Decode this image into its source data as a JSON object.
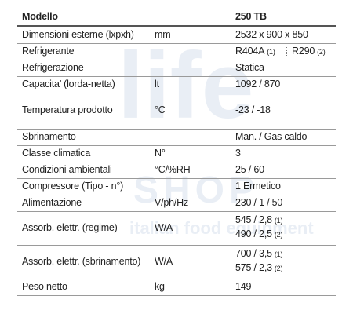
{
  "watermark": [
    "life",
    "SHOP",
    "italian food equipment"
  ],
  "header": {
    "label": "Modello",
    "value": "250 TB"
  },
  "rows": [
    {
      "label": "Dimensioni esterne (lxpxh)",
      "unit": "mm",
      "values": [
        {
          "text": "2532 x 900 x 850"
        }
      ]
    },
    {
      "label": "Refrigerante",
      "values": [
        {
          "text": "R404A",
          "note": "(1)"
        },
        {
          "text": "R290",
          "note": "(2)"
        }
      ]
    },
    {
      "label": "Refrigerazione",
      "values": [
        {
          "text": "Statica"
        }
      ]
    },
    {
      "label": "Capacita’ (lorda-netta)",
      "unit": "lt",
      "values": [
        {
          "text": "1092 / 870"
        }
      ]
    },
    {
      "label": "Temperatura prodotto",
      "unit": "°C",
      "values": [
        {
          "text": "-23 / -18"
        }
      ]
    },
    {
      "label": "Sbrinamento",
      "values": [
        {
          "text": "Man. / Gas caldo"
        }
      ]
    },
    {
      "label": "Classe climatica",
      "unit": "N°",
      "values": [
        {
          "text": "3"
        }
      ]
    },
    {
      "label": "Condizioni ambientali",
      "unit": "°C/%RH",
      "values": [
        {
          "text": "25 / 60"
        }
      ]
    },
    {
      "label": "Compressore (Tipo - n°)",
      "values": [
        {
          "text": "1 Ermetico"
        }
      ]
    },
    {
      "label": "Alimentazione",
      "unit": "V/ph/Hz",
      "values": [
        {
          "text": "230 / 1 / 50"
        }
      ]
    },
    {
      "label": "Assorb. elettr. (regime)",
      "unit": "W/A",
      "values": [
        {
          "text": "545 / 2,8",
          "note": "(1)"
        },
        {
          "text": "490 / 2,5",
          "note": "(2)"
        }
      ]
    },
    {
      "label": "Assorb. elettr. (sbrinamento)",
      "unit": "W/A",
      "values": [
        {
          "text": "700 / 3,5",
          "note": "(1)"
        },
        {
          "text": "575 / 2,3",
          "note": "(2)"
        }
      ]
    },
    {
      "label": "Peso netto",
      "unit": "kg",
      "values": [
        {
          "text": "149"
        }
      ]
    }
  ]
}
